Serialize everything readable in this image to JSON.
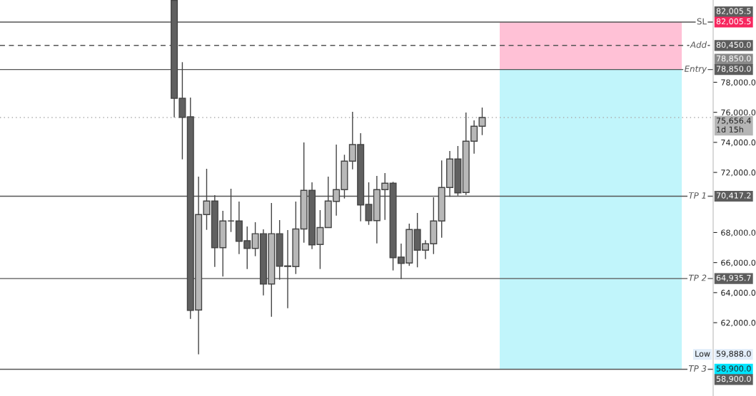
{
  "chart_data": {
    "type": "candlestick",
    "categories": [
      null,
      null,
      null,
      null,
      null,
      null,
      null,
      null,
      null,
      null,
      null,
      null,
      null,
      null,
      null,
      null,
      null,
      null,
      null,
      null,
      null,
      null,
      null,
      null,
      null,
      null,
      null,
      null,
      null,
      null,
      null,
      null,
      null,
      null,
      null,
      null,
      null,
      null,
      null,
      null,
      null,
      null,
      null,
      null,
      null,
      null,
      null,
      null,
      null,
      null,
      null,
      null,
      null,
      null,
      null,
      null,
      null,
      null,
      null,
      null,
      null,
      null,
      null,
      null,
      null,
      null,
      null,
      null,
      null,
      null,
      null,
      null,
      null,
      null,
      null,
      null,
      null,
      null,
      null,
      null,
      null,
      null,
      null,
      null,
      null,
      null,
      null,
      null
    ],
    "ohlc": [
      null,
      null,
      null,
      null,
      null,
      null,
      null,
      null,
      null,
      null,
      null,
      null,
      null,
      null,
      null,
      null,
      null,
      null,
      null,
      null,
      null,
      [
        83450,
        83450,
        75668,
        76934
      ],
      [
        76934,
        79337,
        72871,
        75668
      ],
      [
        75701,
        76981,
        62253,
        62822
      ],
      [
        62841,
        71720,
        59888,
        69193
      ],
      [
        69193,
        72241,
        68179,
        70094
      ],
      [
        70094,
        70487,
        65714,
        66994
      ],
      [
        66994,
        69445,
        65068,
        68767
      ],
      [
        68767,
        70914,
        68037,
        68767
      ],
      [
        68767,
        70061,
        66567,
        67420
      ],
      [
        67454,
        68401,
        65572,
        66946
      ],
      [
        66946,
        68686,
        66425,
        67922
      ],
      [
        67922,
        68212,
        63818,
        64577
      ],
      [
        64577,
        69966,
        62395,
        67922
      ],
      [
        67922,
        68828,
        64860,
        65762
      ],
      [
        65780,
        68165,
        62965,
        65740
      ],
      [
        65733,
        70061,
        65240,
        68236
      ],
      [
        68236,
        73995,
        67326,
        70805
      ],
      [
        70805,
        71340,
        66899,
        67184
      ],
      [
        67202,
        69492,
        65572,
        68331
      ],
      [
        68331,
        71720,
        68331,
        70094
      ],
      [
        70075,
        73853,
        69127,
        70852
      ],
      [
        70852,
        73175,
        70265,
        72748
      ],
      [
        72748,
        76033,
        72208,
        73853
      ],
      [
        73853,
        74611,
        68748,
        69838
      ],
      [
        69871,
        71340,
        68511,
        68795
      ],
      [
        68795,
        71767,
        67278,
        70852
      ],
      [
        70852,
        71957,
        68842,
        71278
      ],
      [
        71278,
        71373,
        65477,
        66330
      ],
      [
        66364,
        67263,
        64900,
        65951
      ],
      [
        65970,
        68591,
        65780,
        68198
      ],
      [
        68198,
        69302,
        65685,
        66823
      ],
      [
        66823,
        67487,
        66235,
        67250
      ],
      [
        67250,
        70345,
        66567,
        68767
      ],
      [
        68767,
        72800,
        67657,
        70994
      ],
      [
        70994,
        73426,
        70378,
        72890
      ],
      [
        72890,
        73758,
        70454,
        70643
      ],
      [
        70662,
        75986,
        70501,
        74075
      ],
      [
        74075,
        75464,
        73251,
        75071
      ],
      [
        75071,
        76317,
        74483,
        75656.4
      ],
      null,
      null,
      null,
      null,
      null,
      null,
      null,
      null,
      null,
      null,
      null,
      null,
      null,
      null,
      null,
      null,
      null,
      null,
      null,
      null,
      null,
      null,
      null,
      null,
      null,
      null,
      null,
      null
    ],
    "colors": [
      null,
      null,
      null,
      null,
      null,
      null,
      null,
      null,
      null,
      null,
      null,
      null,
      null,
      null,
      null,
      null,
      null,
      null,
      null,
      null,
      null,
      "#606060",
      "#606060",
      "#606060",
      "#b8b8b8",
      "#b8b8b8",
      "#606060",
      "#b8b8b8",
      "#444444",
      "#606060",
      "#606060",
      "#b8b8b8",
      "#606060",
      "#b8b8b8",
      "#606060",
      "#606060",
      "#b8b8b8",
      "#b8b8b8",
      "#606060",
      "#b8b8b8",
      "#b8b8b8",
      "#b8b8b8",
      "#b8b8b8",
      "#b8b8b8",
      "#606060",
      "#606060",
      "#b8b8b8",
      "#b8b8b8",
      "#606060",
      "#606060",
      "#b8b8b8",
      "#606060",
      "#b8b8b8",
      "#b8b8b8",
      "#b8b8b8",
      "#b8b8b8",
      "#606060",
      "#b8b8b8",
      "#b8b8b8",
      "#b8b8b8",
      null,
      null,
      null,
      null,
      null,
      null,
      null,
      null,
      null,
      null,
      null,
      null,
      null,
      null,
      null,
      null,
      null,
      null,
      null,
      null,
      null,
      null,
      null,
      null,
      null,
      null,
      null,
      null
    ],
    "ylim": [
      57120,
      83475
    ],
    "yticks": [
      {
        "value": 62000,
        "label": "62,000.0"
      },
      {
        "value": 64000,
        "label": "64,000.0"
      },
      {
        "value": 66000,
        "label": "66,000.0"
      },
      {
        "value": 68000,
        "label": "68,000.0"
      },
      {
        "value": 72000,
        "label": "72,000.0"
      },
      {
        "value": 74000,
        "label": "74,000.0"
      },
      {
        "value": 76000,
        "label": "76,000.0"
      },
      {
        "value": 78000,
        "label": "78,000.0"
      }
    ],
    "tick_labels": "y",
    "grid": false,
    "ref_lines": [
      {
        "axis": "y",
        "value": 82005.5,
        "label": "SL",
        "color": "#555555",
        "line_style": "solid"
      },
      {
        "axis": "y",
        "value": 80450,
        "label": "Add",
        "color": "#555555",
        "line_style": "dashed"
      },
      {
        "axis": "y",
        "value": 78850,
        "label": "Entry",
        "color": "#555555",
        "line_style": "solid"
      },
      {
        "axis": "y",
        "value": 75656.4,
        "label": null,
        "color": "#aaaaaa",
        "line_style": "dotted"
      },
      {
        "axis": "y",
        "value": 70417.2,
        "label": "TP 1",
        "color": "#555555",
        "line_style": "solid"
      },
      {
        "axis": "y",
        "value": 64935.7,
        "label": "TP 2",
        "color": "#555555",
        "line_style": "solid"
      },
      {
        "axis": "y",
        "value": 58900,
        "label": "TP 3",
        "color": "#555555",
        "line_style": "solid"
      }
    ],
    "bands": [
      {
        "axis": "y",
        "from": 78850,
        "to": 82005.5,
        "color": "#ffc1d6"
      },
      {
        "axis": "y",
        "from": 58900,
        "to": 78850,
        "color": "#c1f5fb"
      }
    ],
    "annotations": [
      "82,005.5",
      "82,005.5",
      "80,450.0",
      "78,850.0",
      "78,850.0",
      "75,656.4\n1d 15h",
      "70,417.2",
      "64,935.7",
      "Low",
      "59,888.0",
      "58,900.0",
      "58,900.0"
    ]
  }
}
